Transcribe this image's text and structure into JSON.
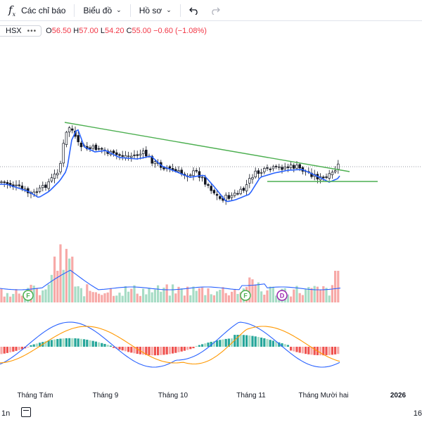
{
  "toolbar": {
    "indicators_label": "Các chỉ báo",
    "chart_label": "Biểu đồ",
    "profile_label": "Hồ sơ"
  },
  "symbol": {
    "exchange": "HSX",
    "more": "•••"
  },
  "ohlc": {
    "o_key": "O",
    "o_val": "56.50",
    "h_key": "H",
    "h_val": "57.00",
    "l_key": "L",
    "l_val": "54.20",
    "c_key": "C",
    "c_val": "55.00",
    "change": "−0.60 (−1.08%)"
  },
  "time_axis": {
    "labels": [
      "Tháng Tám",
      "Tháng 9",
      "Tháng 10",
      "Tháng 11",
      "Tháng Mười hai",
      "2026"
    ]
  },
  "markers": [
    "F",
    "F",
    "D"
  ],
  "bottom": {
    "interval": "1n",
    "right_text": "16"
  },
  "colors": {
    "up": "#089981",
    "down": "#f23645",
    "ma": "#2962ff",
    "trend": "#4caf50",
    "signal": "#ff9800"
  }
}
